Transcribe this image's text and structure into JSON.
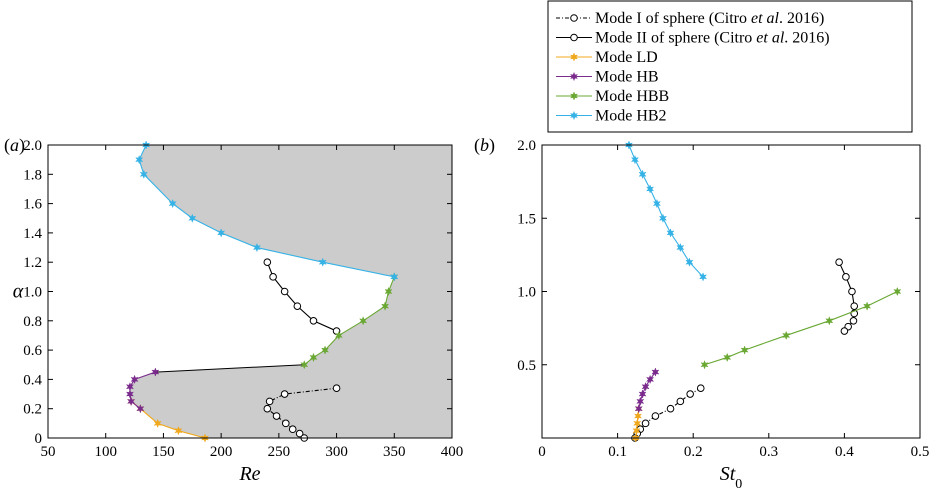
{
  "legend": {
    "entries": [
      {
        "label": "Mode I of sphere (Citro et al. 2016)",
        "color": "#000000",
        "dash": "4,2,1,2",
        "marker": "circle"
      },
      {
        "label": "Mode II of sphere (Citro et al. 2016)",
        "color": "#000000",
        "dash": "",
        "marker": "circle"
      },
      {
        "label": "Mode LD",
        "color": "#f0a81c",
        "dash": "",
        "marker": "star"
      },
      {
        "label": "Mode HB",
        "color": "#7a2b8c",
        "dash": "",
        "marker": "star"
      },
      {
        "label": "Mode HBB",
        "color": "#6aa834",
        "dash": "",
        "marker": "star"
      },
      {
        "label": "Mode HB2",
        "color": "#35b2e6",
        "dash": "",
        "marker": "star"
      }
    ]
  },
  "chart_data": [
    {
      "type": "line",
      "panel_label": "(a)",
      "xlabel": "Re",
      "ylabel": "α",
      "xlim": [
        50,
        400
      ],
      "ylim": [
        0,
        2.0
      ],
      "xticks": [
        "50",
        "100",
        "150",
        "200",
        "250",
        "300",
        "350",
        "400"
      ],
      "yticks": [
        "0",
        "0.2",
        "0.4",
        "0.6",
        "0.8",
        "1.0",
        "1.2",
        "1.4",
        "1.6",
        "1.8",
        "2.0"
      ],
      "shaded_region": true,
      "series": [
        {
          "name": "Mode I of sphere (Citro et al. 2016)",
          "x": [
            300,
            255,
            242,
            240,
            248,
            256,
            262,
            268,
            272
          ],
          "y": [
            0.34,
            0.3,
            0.25,
            0.2,
            0.15,
            0.1,
            0.06,
            0.03,
            0.0
          ]
        },
        {
          "name": "Mode II of sphere (Citro et al. 2016)",
          "x": [
            240,
            245,
            255,
            266,
            280,
            300
          ],
          "y": [
            1.2,
            1.1,
            1.0,
            0.9,
            0.8,
            0.73
          ]
        },
        {
          "name": "Mode LD",
          "x": [
            122,
            130,
            145,
            163,
            186
          ],
          "y": [
            0.25,
            0.2,
            0.1,
            0.05,
            0.0
          ]
        },
        {
          "name": "Mode HB",
          "x": [
            143,
            125,
            121,
            121,
            122,
            130
          ],
          "y": [
            0.45,
            0.4,
            0.35,
            0.3,
            0.25,
            0.2
          ]
        },
        {
          "name": "Mode HBB",
          "x": [
            272,
            280,
            290,
            302,
            323,
            342,
            345,
            350
          ],
          "y": [
            0.5,
            0.55,
            0.6,
            0.7,
            0.8,
            0.9,
            1.0,
            1.1
          ]
        },
        {
          "name": "Mode HB2",
          "x": [
            350,
            288,
            231,
            200,
            175,
            158,
            133,
            129,
            135
          ],
          "y": [
            1.1,
            1.2,
            1.3,
            1.4,
            1.5,
            1.6,
            1.8,
            1.9,
            2.0
          ]
        }
      ]
    },
    {
      "type": "line",
      "panel_label": "(b)",
      "xlabel": "St",
      "xlabel_sub": "0",
      "ylabel": "",
      "xlim": [
        0,
        0.5
      ],
      "ylim": [
        0,
        2.0
      ],
      "xticks": [
        "0",
        "0.1",
        "0.2",
        "0.3",
        "0.4",
        "0.5"
      ],
      "yticks": [
        "0.5",
        "1.0",
        "1.5",
        "2.0"
      ],
      "series": [
        {
          "name": "Mode I of sphere (Citro et al. 2016)",
          "x": [
            0.21,
            0.196,
            0.183,
            0.17,
            0.15,
            0.137,
            0.13,
            0.126,
            0.123
          ],
          "y": [
            0.34,
            0.3,
            0.25,
            0.2,
            0.15,
            0.1,
            0.06,
            0.03,
            0.0
          ]
        },
        {
          "name": "Mode II of sphere (Citro et al. 2016)",
          "x": [
            0.393,
            0.402,
            0.41,
            0.413,
            0.413,
            0.412,
            0.405,
            0.4
          ],
          "y": [
            1.2,
            1.1,
            1.0,
            0.9,
            0.85,
            0.8,
            0.76,
            0.73
          ]
        },
        {
          "name": "Mode LD",
          "x": [
            0.124,
            0.125,
            0.126,
            0.127,
            0.128
          ],
          "y": [
            0.0,
            0.05,
            0.1,
            0.15,
            0.2
          ]
        },
        {
          "name": "Mode HB",
          "x": [
            0.15,
            0.143,
            0.137,
            0.133,
            0.13,
            0.128
          ],
          "y": [
            0.45,
            0.4,
            0.35,
            0.3,
            0.25,
            0.2
          ]
        },
        {
          "name": "Mode HBB",
          "x": [
            0.215,
            0.245,
            0.268,
            0.323,
            0.38,
            0.43,
            0.47
          ],
          "y": [
            0.5,
            0.55,
            0.6,
            0.7,
            0.8,
            0.9,
            1.0
          ]
        },
        {
          "name": "Mode HB2",
          "x": [
            0.213,
            0.195,
            0.183,
            0.17,
            0.16,
            0.152,
            0.143,
            0.133,
            0.123,
            0.115
          ],
          "y": [
            1.1,
            1.2,
            1.3,
            1.4,
            1.5,
            1.6,
            1.7,
            1.8,
            1.9,
            2.0
          ]
        }
      ]
    }
  ]
}
